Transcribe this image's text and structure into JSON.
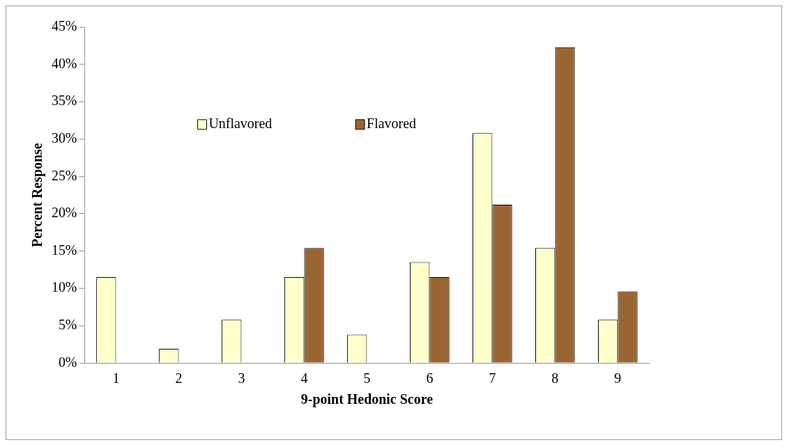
{
  "chart_data": {
    "type": "bar",
    "xlabel": "9-point Hedonic Score",
    "ylabel": "Percent Response",
    "categories": [
      "1",
      "2",
      "3",
      "4",
      "5",
      "6",
      "7",
      "8",
      "9"
    ],
    "series": [
      {
        "name": "Unflavored",
        "color": "#ffffcc",
        "values": [
          11.5,
          1.9,
          5.8,
          11.5,
          3.8,
          13.5,
          30.8,
          15.4,
          5.8
        ]
      },
      {
        "name": "Flavored",
        "color": "#996633",
        "values": [
          0,
          0,
          0,
          15.4,
          0,
          11.5,
          21.2,
          42.3,
          9.6
        ]
      }
    ],
    "ylim": [
      0,
      45
    ],
    "yticks": [
      {
        "value": 0,
        "label": "0%"
      },
      {
        "value": 5,
        "label": "5%"
      },
      {
        "value": 10,
        "label": "10%"
      },
      {
        "value": 15,
        "label": "15%"
      },
      {
        "value": 20,
        "label": "20%"
      },
      {
        "value": 25,
        "label": "25%"
      },
      {
        "value": 30,
        "label": "30%"
      },
      {
        "value": 35,
        "label": "35%"
      },
      {
        "value": 40,
        "label": "40%"
      },
      {
        "value": 45,
        "label": "45%"
      }
    ],
    "grid": false,
    "legend": "top"
  }
}
